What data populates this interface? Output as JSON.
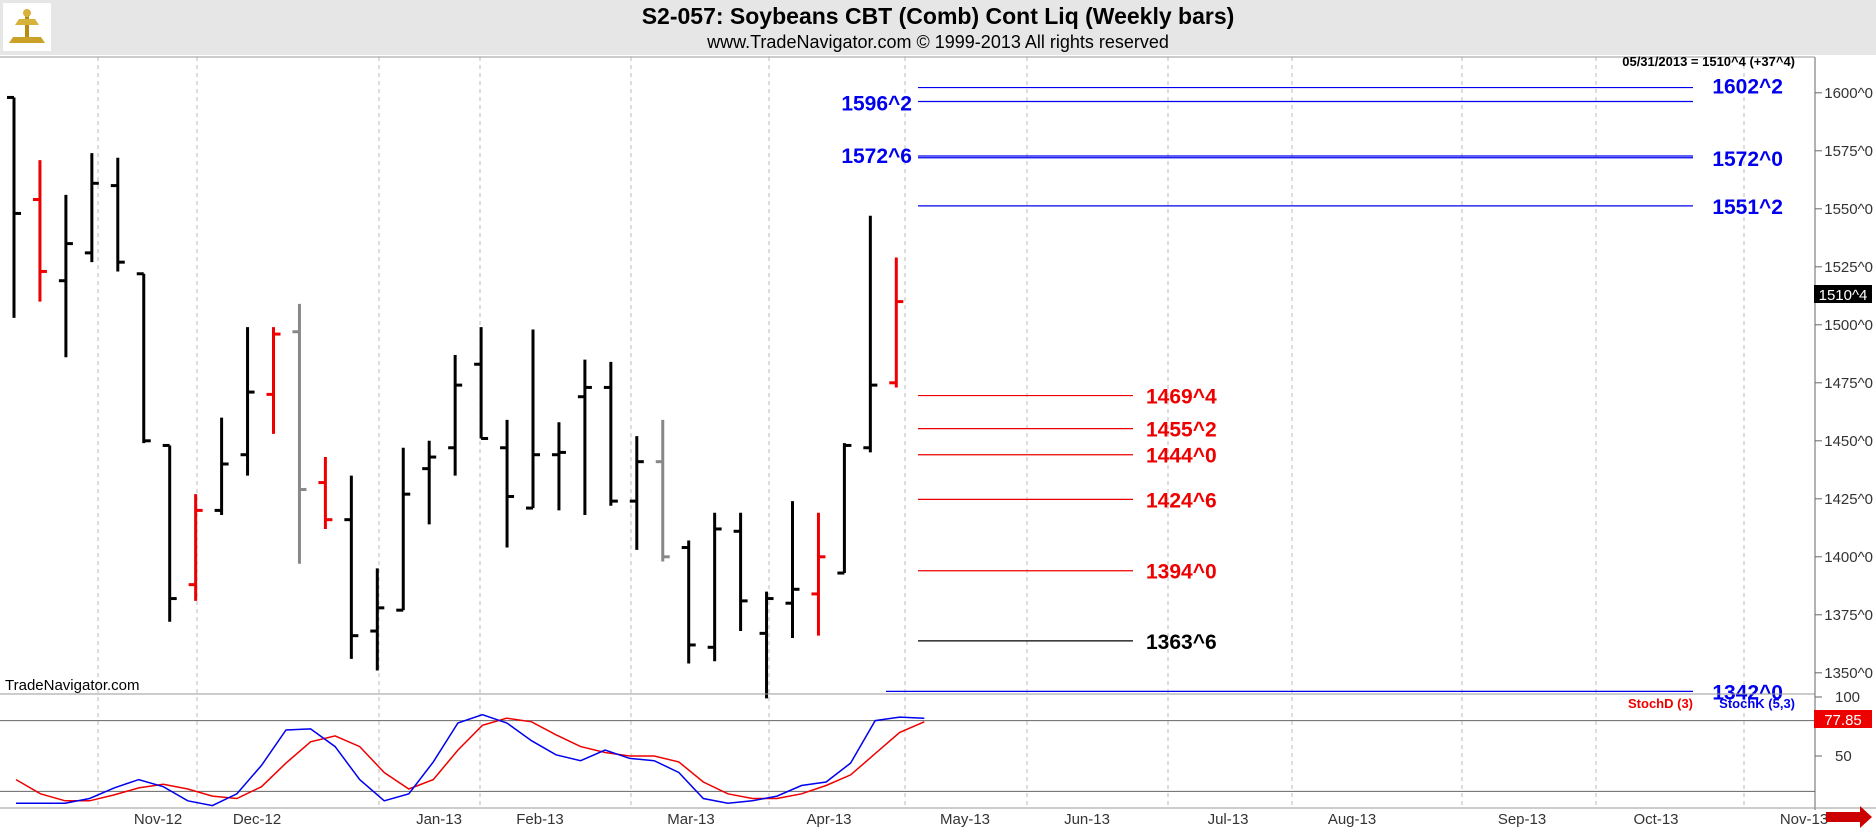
{
  "header": {
    "title": "S2-057:  Soybeans CBT (Comb) Cont Liq  (Weekly bars)",
    "subtitle": "www.TradeNavigator.com © 1999-2013 All rights reserved"
  },
  "chart_data": {
    "type": "bar",
    "last_info": "05/31/2013 = 1510^4 (+37^4)",
    "current_price_label": "1510^4",
    "watermark": "TradeNavigator.com",
    "price_ticks": [
      {
        "value": 1600,
        "label": "1600^0"
      },
      {
        "value": 1575,
        "label": "1575^0"
      },
      {
        "value": 1550,
        "label": "1550^0"
      },
      {
        "value": 1525,
        "label": "1525^0"
      },
      {
        "value": 1500,
        "label": "1500^0"
      },
      {
        "value": 1475,
        "label": "1475^0"
      },
      {
        "value": 1450,
        "label": "1450^0"
      },
      {
        "value": 1425,
        "label": "1425^0"
      },
      {
        "value": 1400,
        "label": "1400^0"
      },
      {
        "value": 1375,
        "label": "1375^0"
      },
      {
        "value": 1350,
        "label": "1350^0"
      }
    ],
    "ylim": [
      1335,
      1625
    ],
    "months": [
      "Nov-12",
      "Dec-12",
      "Jan-13",
      "Feb-13",
      "Mar-13",
      "Apr-13",
      "May-13",
      "Jun-13",
      "Jul-13",
      "Aug-13",
      "Sep-13",
      "Oct-13",
      "Nov-13"
    ],
    "bars": [
      {
        "h": 1598,
        "l": 1503,
        "o": 1598,
        "c": 1548,
        "color": "black"
      },
      {
        "h": 1571,
        "l": 1510,
        "o": 1554,
        "c": 1523,
        "color": "red"
      },
      {
        "h": 1556,
        "l": 1486,
        "o": 1519,
        "c": 1535,
        "color": "black"
      },
      {
        "h": 1574,
        "l": 1527,
        "o": 1531,
        "c": 1561,
        "color": "black"
      },
      {
        "h": 1572,
        "l": 1523,
        "o": 1560,
        "c": 1527,
        "color": "black"
      },
      {
        "h": 1522,
        "l": 1449,
        "o": 1522,
        "c": 1450,
        "color": "black"
      },
      {
        "h": 1448,
        "l": 1372,
        "o": 1448,
        "c": 1382,
        "color": "black"
      },
      {
        "h": 1427,
        "l": 1381,
        "o": 1388,
        "c": 1420,
        "color": "red"
      },
      {
        "h": 1460,
        "l": 1418,
        "o": 1420,
        "c": 1440,
        "color": "black"
      },
      {
        "h": 1499,
        "l": 1435,
        "o": 1444,
        "c": 1471,
        "color": "black"
      },
      {
        "h": 1499,
        "l": 1453,
        "o": 1470,
        "c": 1496,
        "color": "red"
      },
      {
        "h": 1509,
        "l": 1397,
        "o": 1497,
        "c": 1429,
        "color": "gray"
      },
      {
        "h": 1443,
        "l": 1412,
        "o": 1432,
        "c": 1416,
        "color": "red"
      },
      {
        "h": 1435,
        "l": 1356,
        "o": 1416,
        "c": 1366,
        "color": "black"
      },
      {
        "h": 1395,
        "l": 1351,
        "o": 1368,
        "c": 1378,
        "color": "black"
      },
      {
        "h": 1447,
        "l": 1377,
        "o": 1377,
        "c": 1427,
        "color": "black"
      },
      {
        "h": 1450,
        "l": 1414,
        "o": 1438,
        "c": 1443,
        "color": "black"
      },
      {
        "h": 1487,
        "l": 1435,
        "o": 1447,
        "c": 1474,
        "color": "black"
      },
      {
        "h": 1499,
        "l": 1451,
        "o": 1483,
        "c": 1451,
        "color": "black"
      },
      {
        "h": 1459,
        "l": 1404,
        "o": 1447,
        "c": 1426,
        "color": "black"
      },
      {
        "h": 1498,
        "l": 1421,
        "o": 1421,
        "c": 1444,
        "color": "black"
      },
      {
        "h": 1458,
        "l": 1420,
        "o": 1444,
        "c": 1445,
        "color": "black"
      },
      {
        "h": 1485,
        "l": 1418,
        "o": 1469,
        "c": 1473,
        "color": "black"
      },
      {
        "h": 1484,
        "l": 1422,
        "o": 1473,
        "c": 1424,
        "color": "black"
      },
      {
        "h": 1452,
        "l": 1403,
        "o": 1424,
        "c": 1441,
        "color": "black"
      },
      {
        "h": 1459,
        "l": 1398,
        "o": 1441,
        "c": 1400,
        "color": "gray"
      },
      {
        "h": 1407,
        "l": 1354,
        "o": 1404,
        "c": 1362,
        "color": "black"
      },
      {
        "h": 1419,
        "l": 1355,
        "o": 1361,
        "c": 1412,
        "color": "black"
      },
      {
        "h": 1419,
        "l": 1368,
        "o": 1411,
        "c": 1381,
        "color": "black"
      },
      {
        "h": 1385,
        "l": 1339,
        "o": 1367,
        "c": 1382,
        "color": "black"
      },
      {
        "h": 1424,
        "l": 1365,
        "o": 1380,
        "c": 1386,
        "color": "black"
      },
      {
        "h": 1419,
        "l": 1366,
        "o": 1384,
        "c": 1400,
        "color": "red"
      },
      {
        "h": 1449,
        "l": 1393,
        "o": 1393,
        "c": 1448,
        "color": "black"
      },
      {
        "h": 1547,
        "l": 1445,
        "o": 1447,
        "c": 1474,
        "color": "black"
      },
      {
        "h": 1529,
        "l": 1473,
        "o": 1475,
        "c": 1510,
        "color": "red"
      }
    ],
    "levels": [
      {
        "value": 1602.25,
        "label": "1602^2",
        "color": "#0000ee",
        "side": "right"
      },
      {
        "value": 1596.25,
        "label": "1596^2",
        "color": "#0000ee",
        "side": "left"
      },
      {
        "value": 1572.75,
        "label": "1572^6",
        "color": "#0000ee",
        "side": "left"
      },
      {
        "value": 1572.0,
        "label": "1572^0",
        "color": "#0000ee",
        "side": "right"
      },
      {
        "value": 1551.25,
        "label": "1551^2",
        "color": "#0000ee",
        "side": "right"
      },
      {
        "value": 1469.5,
        "label": "1469^4",
        "color": "#ee0000",
        "side": "mid"
      },
      {
        "value": 1455.25,
        "label": "1455^2",
        "color": "#ee0000",
        "side": "mid"
      },
      {
        "value": 1444.0,
        "label": "1444^0",
        "color": "#ee0000",
        "side": "mid"
      },
      {
        "value": 1424.75,
        "label": "1424^6",
        "color": "#ee0000",
        "side": "mid"
      },
      {
        "value": 1394.0,
        "label": "1394^0",
        "color": "#ee0000",
        "side": "mid"
      },
      {
        "value": 1363.75,
        "label": "1363^6",
        "color": "#000000",
        "side": "mid"
      },
      {
        "value": 1342.0,
        "label": "1342^0",
        "color": "#0000ee",
        "side": "right"
      }
    ],
    "stochastic": {
      "d_label": "StochD (3)",
      "k_label": "StochK (5,3)",
      "d_color": "#ee0000",
      "k_color": "#0000ee",
      "last_value": "77.85",
      "ticks": [
        {
          "value": 100,
          "label": "100"
        },
        {
          "value": 50,
          "label": "50"
        }
      ],
      "overbought": 80,
      "oversold": 20,
      "k": [
        10,
        10,
        10,
        14,
        23,
        30,
        24,
        12,
        8,
        18,
        42,
        72,
        73,
        58,
        30,
        12,
        18,
        45,
        78,
        85,
        78,
        63,
        51,
        46,
        55,
        48,
        46,
        36,
        14,
        10,
        12,
        16,
        25,
        28,
        44,
        80,
        83,
        82
      ],
      "d": [
        30,
        18,
        12,
        12,
        17,
        23,
        26,
        22,
        16,
        14,
        24,
        44,
        62,
        67,
        58,
        36,
        22,
        30,
        55,
        76,
        82,
        79,
        68,
        58,
        53,
        50,
        50,
        45,
        28,
        18,
        14,
        14,
        18,
        25,
        34,
        52,
        70,
        79
      ]
    }
  }
}
